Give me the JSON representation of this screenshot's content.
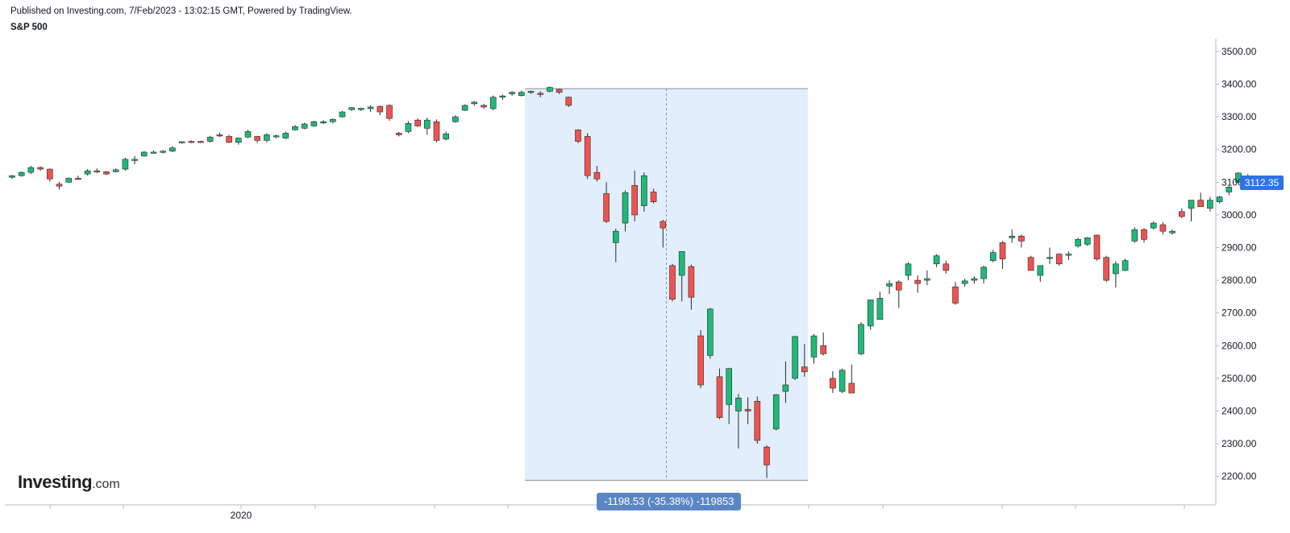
{
  "header": {
    "published": "Published on Investing.com, 7/Feb/2023 - 13:02:15 GMT, Powered by TradingView.",
    "symbol": "S&P 500"
  },
  "watermark": {
    "brand": "Investing",
    "suffix": ".com"
  },
  "colors": {
    "up": "#1fb978",
    "down": "#ef5350",
    "measure_fill": "#e3eefc",
    "measure_label_bg": "#5b86c5",
    "price_badge_bg": "#2e72e8"
  },
  "chart_data": {
    "type": "candlestick",
    "title": "S&P 500",
    "y_axis": {
      "ticks": [
        3500,
        3400,
        3300,
        3200,
        3100,
        3000,
        2900,
        2800,
        2700,
        2600,
        2500,
        2400,
        2300,
        2200
      ],
      "tick_labels": [
        "3500.00",
        "3400.00",
        "3300.00",
        "3200.00",
        "3100.00",
        "3000.00",
        "2900.00",
        "2800.00",
        "2700.00",
        "2600.00",
        "2500.00",
        "2400.00",
        "2300.00",
        "2200.00"
      ],
      "range": [
        2170,
        3535
      ],
      "position": "right"
    },
    "x_axis": {
      "labels": [
        "2020"
      ]
    },
    "last_price": "3112.35",
    "measurement": {
      "label": "-1198.53 (-35.38%) -119853",
      "from": 3386,
      "to": 2188
    },
    "candles": [
      [
        3115,
        3122,
        3110,
        3120
      ],
      [
        3120,
        3133,
        3117,
        3130
      ],
      [
        3130,
        3150,
        3125,
        3145
      ],
      [
        3145,
        3148,
        3135,
        3140
      ],
      [
        3140,
        3142,
        3102,
        3110
      ],
      [
        3094,
        3101,
        3078,
        3088
      ],
      [
        3100,
        3115,
        3098,
        3112
      ],
      [
        3112,
        3120,
        3108,
        3110
      ],
      [
        3125,
        3140,
        3120,
        3135
      ],
      [
        3135,
        3142,
        3128,
        3132
      ],
      [
        3132,
        3134,
        3122,
        3125
      ],
      [
        3132,
        3142,
        3130,
        3138
      ],
      [
        3140,
        3175,
        3135,
        3170
      ],
      [
        3168,
        3180,
        3155,
        3170
      ],
      [
        3180,
        3195,
        3178,
        3192
      ],
      [
        3190,
        3197,
        3188,
        3192
      ],
      [
        3192,
        3198,
        3188,
        3195
      ],
      [
        3195,
        3210,
        3192,
        3205
      ],
      [
        3222,
        3225,
        3218,
        3224
      ],
      [
        3225,
        3228,
        3220,
        3224
      ],
      [
        3225,
        3227,
        3220,
        3224
      ],
      [
        3225,
        3242,
        3222,
        3238
      ],
      [
        3245,
        3252,
        3238,
        3244
      ],
      [
        3240,
        3245,
        3220,
        3222
      ],
      [
        3222,
        3237,
        3215,
        3235
      ],
      [
        3238,
        3260,
        3235,
        3255
      ],
      [
        3240,
        3242,
        3220,
        3228
      ],
      [
        3228,
        3250,
        3222,
        3245
      ],
      [
        3240,
        3246,
        3235,
        3242
      ],
      [
        3235,
        3255,
        3232,
        3250
      ],
      [
        3260,
        3275,
        3258,
        3270
      ],
      [
        3265,
        3282,
        3262,
        3278
      ],
      [
        3272,
        3288,
        3270,
        3285
      ],
      [
        3285,
        3290,
        3278,
        3285
      ],
      [
        3285,
        3295,
        3280,
        3292
      ],
      [
        3300,
        3318,
        3298,
        3315
      ],
      [
        3322,
        3330,
        3318,
        3328
      ],
      [
        3322,
        3328,
        3318,
        3326
      ],
      [
        3325,
        3335,
        3315,
        3330
      ],
      [
        3332,
        3335,
        3305,
        3315
      ],
      [
        3335,
        3338,
        3288,
        3295
      ],
      [
        3250,
        3254,
        3240,
        3245
      ],
      [
        3255,
        3287,
        3250,
        3280
      ],
      [
        3290,
        3295,
        3270,
        3272
      ],
      [
        3265,
        3298,
        3245,
        3290
      ],
      [
        3285,
        3292,
        3222,
        3228
      ],
      [
        3232,
        3255,
        3228,
        3248
      ],
      [
        3285,
        3305,
        3282,
        3300
      ],
      [
        3320,
        3338,
        3318,
        3335
      ],
      [
        3340,
        3348,
        3334,
        3345
      ],
      [
        3335,
        3340,
        3325,
        3330
      ],
      [
        3325,
        3365,
        3320,
        3360
      ],
      [
        3360,
        3368,
        3352,
        3364
      ],
      [
        3370,
        3378,
        3364,
        3375
      ],
      [
        3365,
        3380,
        3362,
        3375
      ],
      [
        3375,
        3380,
        3370,
        3378
      ],
      [
        3372,
        3378,
        3360,
        3370
      ],
      [
        3378,
        3393,
        3375,
        3390
      ],
      [
        3384,
        3386,
        3370,
        3375
      ],
      [
        3360,
        3362,
        3330,
        3335
      ],
      [
        3260,
        3262,
        3220,
        3225
      ],
      [
        3240,
        3250,
        3110,
        3120
      ],
      [
        3130,
        3150,
        3102,
        3110
      ],
      [
        3065,
        3100,
        2975,
        2980
      ],
      [
        2915,
        2958,
        2855,
        2950
      ],
      [
        2975,
        3075,
        2950,
        3068
      ],
      [
        3090,
        3135,
        2980,
        3000
      ],
      [
        3028,
        3130,
        3010,
        3120
      ],
      [
        3070,
        3080,
        3035,
        3040
      ],
      [
        2980,
        2985,
        2900,
        2960
      ],
      [
        2845,
        2850,
        2735,
        2742
      ],
      [
        2815,
        2885,
        2735,
        2888
      ],
      [
        2842,
        2848,
        2710,
        2748
      ],
      [
        2630,
        2648,
        2470,
        2480
      ],
      [
        2570,
        2715,
        2560,
        2712
      ],
      [
        2505,
        2530,
        2375,
        2380
      ],
      [
        2420,
        2532,
        2360,
        2530
      ],
      [
        2400,
        2452,
        2285,
        2440
      ],
      [
        2405,
        2442,
        2360,
        2400
      ],
      [
        2430,
        2445,
        2300,
        2310
      ],
      [
        2290,
        2295,
        2195,
        2235
      ],
      [
        2345,
        2452,
        2340,
        2450
      ],
      [
        2460,
        2552,
        2425,
        2480
      ],
      [
        2500,
        2630,
        2495,
        2628
      ],
      [
        2535,
        2605,
        2505,
        2520
      ],
      [
        2565,
        2635,
        2545,
        2630
      ],
      [
        2600,
        2640,
        2570,
        2575
      ],
      [
        2500,
        2522,
        2455,
        2470
      ],
      [
        2460,
        2530,
        2455,
        2525
      ],
      [
        2485,
        2542,
        2460,
        2455
      ],
      [
        2575,
        2672,
        2570,
        2665
      ],
      [
        2660,
        2740,
        2648,
        2740
      ],
      [
        2680,
        2765,
        2680,
        2745
      ],
      [
        2782,
        2800,
        2758,
        2790
      ],
      [
        2795,
        2800,
        2715,
        2770
      ],
      [
        2815,
        2855,
        2800,
        2850
      ],
      [
        2800,
        2815,
        2762,
        2790
      ],
      [
        2800,
        2830,
        2785,
        2805
      ],
      [
        2850,
        2880,
        2840,
        2875
      ],
      [
        2850,
        2860,
        2820,
        2830
      ],
      [
        2780,
        2795,
        2725,
        2730
      ],
      [
        2790,
        2805,
        2780,
        2798
      ],
      [
        2800,
        2812,
        2790,
        2805
      ],
      [
        2805,
        2845,
        2790,
        2840
      ],
      [
        2860,
        2893,
        2855,
        2885
      ],
      [
        2915,
        2920,
        2835,
        2865
      ],
      [
        2930,
        2955,
        2915,
        2935
      ],
      [
        2935,
        2940,
        2900,
        2920
      ],
      [
        2870,
        2875,
        2830,
        2830
      ],
      [
        2815,
        2840,
        2795,
        2845
      ],
      [
        2870,
        2900,
        2850,
        2870
      ],
      [
        2880,
        2883,
        2845,
        2850
      ],
      [
        2880,
        2888,
        2862,
        2880
      ],
      [
        2905,
        2930,
        2900,
        2925
      ],
      [
        2910,
        2932,
        2905,
        2930
      ],
      [
        2938,
        2940,
        2860,
        2865
      ],
      [
        2870,
        2875,
        2795,
        2800
      ],
      [
        2820,
        2858,
        2778,
        2850
      ],
      [
        2830,
        2866,
        2828,
        2860
      ],
      [
        2920,
        2962,
        2915,
        2955
      ],
      [
        2955,
        2960,
        2915,
        2925
      ],
      [
        2960,
        2980,
        2955,
        2975
      ],
      [
        2970,
        2978,
        2940,
        2950
      ],
      [
        2945,
        2955,
        2940,
        2950
      ],
      [
        3010,
        3020,
        2990,
        2995
      ],
      [
        3020,
        3040,
        2980,
        3045
      ],
      [
        3045,
        3068,
        3025,
        3025
      ],
      [
        3020,
        3055,
        3010,
        3045
      ],
      [
        3040,
        3058,
        3035,
        3055
      ],
      [
        3070,
        3088,
        3060,
        3085
      ],
      [
        3100,
        3130,
        3098,
        3128
      ],
      [
        3112,
        3125,
        3100,
        3112
      ]
    ]
  }
}
